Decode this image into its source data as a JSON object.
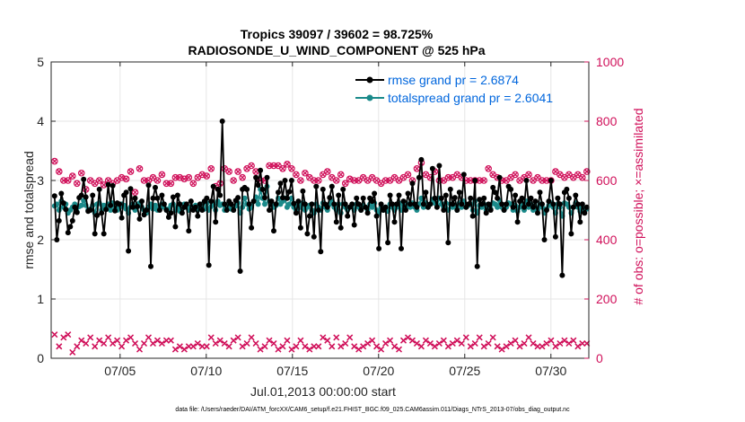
{
  "chart_data": {
    "type": "line",
    "title": "Tropics 39097 / 39602 = 98.725%",
    "subtitle": "RADIOSONDE_U_WIND_COMPONENT @ 525 hPa",
    "xlabel": "Jul.01,2013 00:00:00 start",
    "ylabel": "rmse and totalspread",
    "ylabel_right": "# of obs: o=possible; ×=assimilated",
    "footer": "data file: /Users/raeder/DAI/ATM_forcXX/CAM6_setup/f.e21.FHIST_BGC.f09_025.CAM6assim.011/Diags_NTrS_2013-07/obs_diag_output.nc",
    "xlim": [
      1.0,
      32.2
    ],
    "ylim": [
      0,
      5
    ],
    "ylim_right": [
      0,
      1000
    ],
    "x_ticks": [
      5,
      10,
      15,
      20,
      25,
      30
    ],
    "x_tick_labels": [
      "07/05",
      "07/10",
      "07/15",
      "07/20",
      "07/25",
      "07/30"
    ],
    "y_ticks": [
      0,
      1,
      2,
      3,
      4,
      5
    ],
    "y_tick_labels": [
      "0",
      "1",
      "2",
      "3",
      "4",
      "5"
    ],
    "y_right_ticks": [
      0,
      200,
      400,
      600,
      800,
      1000
    ],
    "y_right_tick_labels": [
      "0",
      "200",
      "400",
      "600",
      "800",
      "1000"
    ],
    "grid": true,
    "legend_position": "top-right",
    "colors": {
      "rmse": "#000000",
      "spread": "#1a8a8a",
      "obs": "#d0105a",
      "legend_text": "#0066dd",
      "axis": "#262626",
      "grid": "#e6e6e6"
    },
    "series": [
      {
        "name": "rmse grand pr = 2.6874",
        "key": "rmse",
        "values": [
          2.74,
          2.0,
          2.32,
          2.78,
          2.62,
          2.51,
          2.12,
          2.22,
          2.32,
          2.55,
          2.46,
          2.71,
          2.75,
          3.02,
          2.72,
          2.48,
          2.5,
          2.75,
          2.1,
          2.41,
          2.85,
          2.45,
          2.1,
          2.51,
          2.93,
          2.58,
          2.91,
          2.49,
          2.62,
          2.6,
          2.37,
          2.75,
          2.8,
          1.81,
          2.86,
          2.55,
          2.7,
          2.56,
          2.35,
          2.65,
          2.42,
          2.5,
          2.92,
          1.55,
          2.7,
          2.88,
          2.7,
          2.5,
          2.75,
          2.6,
          2.5,
          2.38,
          2.45,
          2.72,
          2.22,
          2.75,
          2.6,
          2.45,
          2.55,
          2.6,
          2.15,
          2.65,
          2.5,
          2.55,
          2.4,
          2.6,
          2.5,
          2.65,
          2.7,
          1.57,
          2.65,
          2.9,
          2.3,
          2.85,
          2.75,
          4.0,
          2.6,
          2.5,
          2.65,
          2.6,
          2.5,
          2.66,
          2.71,
          1.47,
          2.85,
          2.88,
          2.85,
          2.6,
          2.2,
          2.65,
          3.05,
          2.92,
          3.17,
          2.85,
          2.71,
          3.05,
          2.5,
          2.65,
          2.15,
          2.6,
          2.8,
          2.95,
          2.71,
          3.0,
          2.7,
          2.81,
          3.0,
          2.61,
          2.45,
          2.65,
          2.2,
          2.82,
          2.6,
          2.1,
          2.4,
          2.6,
          2.05,
          2.9,
          2.5,
          1.8,
          2.85,
          2.6,
          2.55,
          2.71,
          2.9,
          2.6,
          2.3,
          2.75,
          2.2,
          2.85,
          2.6,
          2.4,
          2.55,
          2.6,
          2.25,
          2.7,
          2.6,
          2.5,
          2.7,
          2.55,
          2.45,
          2.7,
          2.65,
          2.78,
          2.4,
          1.85,
          2.6,
          2.5,
          2.55,
          1.95,
          2.75,
          2.6,
          2.3,
          2.6,
          2.75,
          1.85,
          2.65,
          2.5,
          2.78,
          2.6,
          2.95,
          2.6,
          2.55,
          3.05,
          3.35,
          2.6,
          2.8,
          2.55,
          2.6,
          3.2,
          2.7,
          2.55,
          3.25,
          2.7,
          2.5,
          2.75,
          1.95,
          2.85,
          2.6,
          2.71,
          2.5,
          2.8,
          2.6,
          3.1,
          2.55,
          2.6,
          2.7,
          2.4,
          3.0,
          1.55,
          2.68,
          2.6,
          2.7,
          2.45,
          2.6,
          2.5,
          2.88,
          2.8,
          2.7,
          3.05,
          2.6,
          2.5,
          2.6,
          2.9,
          2.85,
          2.55,
          2.75,
          2.3,
          2.65,
          2.7,
          2.55,
          3.0,
          2.6,
          2.7,
          2.55,
          2.65,
          2.45,
          2.8,
          2.6,
          2.0,
          2.5,
          2.65,
          3.0,
          2.6,
          2.05,
          2.7,
          2.6,
          1.4,
          2.8,
          2.85,
          2.7,
          2.1,
          2.55,
          2.75,
          2.6,
          2.3,
          2.6,
          2.45,
          2.55
        ]
      },
      {
        "name": "totalspread grand pr = 2.6041",
        "key": "spread",
        "values": [
          2.57,
          2.6,
          2.5,
          2.65,
          2.55,
          2.6,
          2.45,
          2.5,
          2.55,
          2.6,
          2.47,
          2.56,
          2.58,
          2.66,
          2.58,
          2.5,
          2.52,
          2.58,
          2.45,
          2.6,
          2.62,
          2.5,
          2.58,
          2.55,
          2.6,
          2.5,
          2.62,
          2.55,
          2.5,
          2.55,
          2.6,
          2.58,
          2.52,
          2.45,
          2.55,
          2.6,
          2.5,
          2.57,
          2.62,
          2.55,
          2.5,
          2.45,
          2.55,
          2.6,
          2.52,
          2.58,
          2.5,
          2.53,
          2.6,
          2.55,
          2.5,
          2.52,
          2.58,
          2.6,
          2.5,
          2.55,
          2.48,
          2.52,
          2.6,
          2.55,
          2.5,
          2.56,
          2.52,
          2.58,
          2.5,
          2.55,
          2.6,
          2.52,
          2.62,
          2.5,
          2.56,
          2.6,
          2.5,
          2.65,
          2.58,
          2.6,
          2.5,
          2.55,
          2.6,
          2.52,
          2.5,
          2.57,
          2.62,
          2.45,
          2.55,
          2.7,
          2.6,
          2.52,
          2.55,
          2.65,
          2.72,
          2.6,
          2.85,
          2.7,
          2.6,
          2.9,
          2.65,
          2.6,
          2.55,
          2.58,
          2.7,
          2.6,
          2.65,
          2.7,
          2.55,
          2.6,
          2.7,
          2.55,
          2.5,
          2.58,
          2.55,
          2.62,
          2.5,
          2.55,
          2.58,
          2.5,
          2.45,
          2.6,
          2.55,
          2.5,
          2.62,
          2.55,
          2.5,
          2.6,
          2.65,
          2.55,
          2.5,
          2.6,
          2.45,
          2.6,
          2.55,
          2.5,
          2.55,
          2.58,
          2.5,
          2.6,
          2.55,
          2.5,
          2.58,
          2.55,
          2.5,
          2.6,
          2.55,
          2.62,
          2.5,
          2.45,
          2.55,
          2.5,
          2.55,
          2.48,
          2.6,
          2.55,
          2.5,
          2.55,
          2.62,
          2.5,
          2.58,
          2.55,
          2.6,
          2.55,
          2.62,
          2.55,
          2.5,
          2.6,
          2.7,
          2.55,
          2.62,
          2.55,
          2.6,
          2.68,
          2.62,
          2.58,
          2.7,
          2.6,
          2.55,
          2.62,
          2.5,
          2.6,
          2.55,
          2.58,
          2.5,
          2.62,
          2.55,
          2.65,
          2.55,
          2.58,
          2.6,
          2.5,
          2.65,
          2.45,
          2.58,
          2.55,
          2.6,
          2.5,
          2.55,
          2.52,
          2.62,
          2.6,
          2.55,
          2.66,
          2.55,
          2.5,
          2.55,
          2.62,
          2.6,
          2.5,
          2.58,
          2.48,
          2.55,
          2.6,
          2.5,
          2.65,
          2.55,
          2.6,
          2.5,
          2.55,
          2.5,
          2.6,
          2.55,
          2.45,
          2.52,
          2.58,
          2.62,
          2.55,
          2.45,
          2.6,
          2.55,
          2.4,
          2.62,
          2.6,
          2.55,
          2.45,
          2.55,
          2.62,
          2.55,
          2.48,
          2.55,
          2.5,
          2.52
        ]
      },
      {
        "name": "obs possible",
        "key": "obs_possible",
        "axis": "right",
        "values": [
          665,
          630,
          630,
          630,
          600,
          605,
          600,
          610,
          615,
          635,
          590,
          620,
          625,
          630,
          570,
          600,
          600,
          610,
          590,
          605,
          600,
          610,
          585,
          595,
          600,
          605,
          590,
          590,
          600,
          560,
          610,
          620,
          605,
          640,
          630,
          610,
          560,
          640,
          640,
          600,
          600,
          610,
          600,
          590,
          610,
          650,
          600,
          610,
          620,
          580,
          590,
          600,
          590,
          600,
          610,
          630,
          610,
          600,
          605,
          600,
          610,
          600,
          590,
          600,
          610,
          600,
          620,
          630,
          615,
          600,
          640,
          620,
          580,
          650,
          590,
          640,
          640,
          640,
          630,
          580,
          600,
          590,
          630,
          600,
          610,
          630,
          640,
          610,
          650,
          600,
          630,
          610,
          600,
          610,
          600,
          640,
          650,
          630,
          650,
          620,
          650,
          580,
          640,
          650,
          655,
          630,
          640,
          600,
          620,
          610,
          600,
          610,
          625,
          620,
          610,
          620,
          600,
          630,
          600,
          610,
          620,
          640,
          630,
          605,
          610,
          600,
          600,
          610,
          620,
          600,
          590,
          600,
          605,
          610,
          600,
          610,
          600,
          605,
          610,
          610,
          600,
          590,
          610,
          600,
          600,
          610,
          590,
          610,
          600,
          620,
          600,
          580,
          610,
          600,
          600,
          620,
          610,
          600,
          620,
          600,
          600,
          610,
          640,
          600,
          660,
          630,
          620,
          600,
          610,
          640,
          630,
          620,
          600,
          620,
          600,
          610,
          610,
          600,
          610,
          600,
          620,
          600,
          610,
          620,
          600,
          610,
          600,
          640,
          600,
          610,
          600,
          610,
          600,
          610,
          640,
          600,
          620,
          600,
          610,
          620,
          600,
          610,
          600,
          620,
          610,
          600,
          620,
          610,
          600,
          620,
          610,
          600,
          620,
          610,
          600,
          620,
          610,
          610,
          600,
          620,
          600,
          610,
          600,
          620,
          630,
          600,
          620,
          600,
          610,
          600,
          620,
          600,
          610,
          600,
          620,
          640,
          610,
          600,
          630
        ]
      },
      {
        "name": "obs assimilated",
        "key": "obs_assimilated",
        "axis": "right",
        "values": [
          80,
          60,
          40,
          40,
          70,
          50,
          80,
          40,
          20,
          50,
          40,
          30,
          60,
          30,
          50,
          40,
          70,
          30,
          40,
          30,
          60,
          40,
          50,
          20,
          70,
          40,
          50,
          30,
          60,
          50,
          40,
          30,
          60,
          20,
          70,
          40,
          50,
          40,
          30,
          60,
          50,
          40,
          70,
          30,
          50,
          40,
          60,
          30,
          50,
          40,
          60,
          20,
          60,
          40,
          30,
          70,
          40,
          50,
          30,
          60,
          40,
          50,
          40,
          60,
          50,
          30,
          40,
          60,
          40,
          50,
          70,
          40,
          50,
          40,
          60,
          30,
          50,
          60,
          40,
          50,
          60,
          40,
          70,
          50,
          40,
          60,
          50,
          40,
          70,
          60,
          50,
          40,
          30,
          60,
          40,
          50,
          60,
          40,
          50,
          70,
          30,
          60,
          40,
          50,
          60,
          40,
          30,
          70,
          40,
          50,
          60,
          50,
          40,
          70,
          30,
          50,
          40,
          60,
          40,
          50,
          70,
          40,
          60,
          50,
          40,
          30,
          70,
          50,
          40,
          60,
          50,
          40,
          70,
          50,
          40,
          60,
          30,
          50,
          40,
          70,
          50,
          40,
          60,
          50,
          40,
          60,
          30,
          70,
          50,
          40,
          60,
          50,
          40,
          70,
          30,
          50,
          60,
          40,
          70,
          50,
          60,
          40,
          50,
          70,
          40,
          50,
          60,
          30,
          50,
          60,
          40,
          70,
          50,
          40,
          60,
          50,
          40,
          60,
          50,
          40,
          60,
          30,
          50,
          40,
          70,
          50,
          40,
          60,
          50,
          40,
          70,
          50,
          40,
          60,
          50,
          40,
          70,
          50,
          40,
          60,
          30,
          50,
          40,
          70,
          50,
          40,
          60,
          50,
          40,
          60,
          50,
          40,
          70,
          40,
          50,
          60,
          40,
          50,
          40,
          70,
          50,
          40,
          60,
          50,
          40,
          60,
          50,
          40,
          60,
          70,
          50,
          40,
          60,
          50,
          40,
          60,
          50,
          40,
          50
        ]
      }
    ],
    "x_start": 1.2,
    "x_step": 0.12977
  }
}
